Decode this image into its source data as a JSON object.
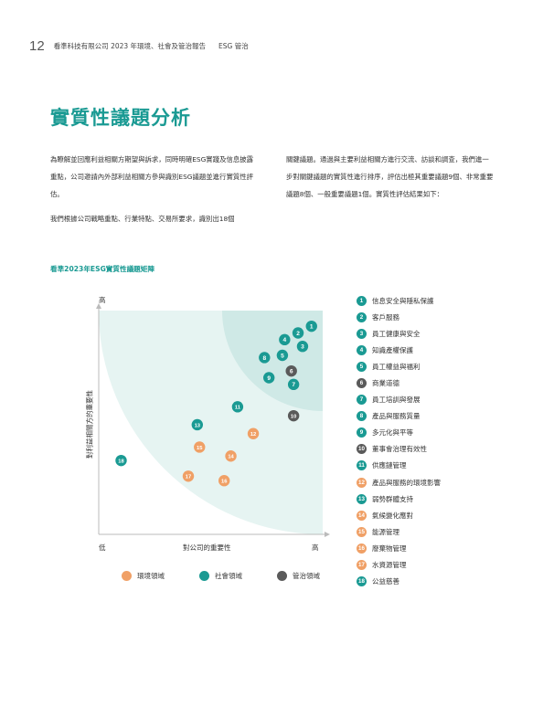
{
  "header": {
    "page_number": "12",
    "title": "看準科技有限公司 2023 年環境、社會及管治報告",
    "section": "ESG 管治"
  },
  "title": "實質性議題分析",
  "body": {
    "left": [
      "為瞭解並回應利益相關方期望與訴求，同時明確ESG實踐及信息披露重點，公司邀請內外部利益相關方參與識別ESG議題並進行實質性評估。",
      "我們根據公司戰略重點、行業特點、交易所要求，識別出18個"
    ],
    "right": [
      "關鍵議題。通過與主要利益相關方進行交流、訪談和調查，我們進一步對關鍵議題的實質性進行排序，評估出極其重要議題9個、非常重要議題8個、一般重要議題1個。實質性評估結果如下："
    ]
  },
  "matrix_heading": "看準2023年ESG實質性議題矩陣",
  "colors": {
    "env": "#f0a066",
    "social": "#1a9a93",
    "governance": "#5a5a5a",
    "zone_outer": "#e6f4f2",
    "zone_inner": "#cfe9e6"
  },
  "chart_data": {
    "type": "scatter",
    "xlabel": "對公司的重要性",
    "ylabel": "對利益相關方的重要性",
    "x_low": "低",
    "x_high": "高",
    "y_high": "高",
    "xlim": [
      0,
      100
    ],
    "ylim": [
      0,
      100
    ],
    "points": [
      {
        "id": 1,
        "x": 95,
        "y": 93,
        "cat": "social"
      },
      {
        "id": 2,
        "x": 89,
        "y": 90,
        "cat": "social"
      },
      {
        "id": 3,
        "x": 91,
        "y": 84,
        "cat": "social"
      },
      {
        "id": 4,
        "x": 83,
        "y": 87,
        "cat": "social"
      },
      {
        "id": 5,
        "x": 82,
        "y": 80,
        "cat": "social"
      },
      {
        "id": 6,
        "x": 86,
        "y": 73,
        "cat": "governance"
      },
      {
        "id": 7,
        "x": 87,
        "y": 67,
        "cat": "social"
      },
      {
        "id": 8,
        "x": 74,
        "y": 79,
        "cat": "social"
      },
      {
        "id": 9,
        "x": 76,
        "y": 70,
        "cat": "social"
      },
      {
        "id": 10,
        "x": 87,
        "y": 53,
        "cat": "governance"
      },
      {
        "id": 11,
        "x": 62,
        "y": 57,
        "cat": "social"
      },
      {
        "id": 12,
        "x": 69,
        "y": 45,
        "cat": "env"
      },
      {
        "id": 13,
        "x": 44,
        "y": 49,
        "cat": "social"
      },
      {
        "id": 14,
        "x": 59,
        "y": 35,
        "cat": "env"
      },
      {
        "id": 15,
        "x": 45,
        "y": 39,
        "cat": "env"
      },
      {
        "id": 16,
        "x": 56,
        "y": 24,
        "cat": "env"
      },
      {
        "id": 17,
        "x": 40,
        "y": 26,
        "cat": "env"
      },
      {
        "id": 18,
        "x": 10,
        "y": 33,
        "cat": "social"
      }
    ]
  },
  "legend": [
    {
      "cat": "env",
      "label": "環境領域"
    },
    {
      "cat": "social",
      "label": "社會領域"
    },
    {
      "cat": "governance",
      "label": "管治領域"
    }
  ],
  "issues": [
    {
      "id": "1",
      "label": "信息安全與隱私保護",
      "cat": "social"
    },
    {
      "id": "2",
      "label": "客戶服務",
      "cat": "social"
    },
    {
      "id": "3",
      "label": "員工健康與安全",
      "cat": "social"
    },
    {
      "id": "4",
      "label": "知識產權保護",
      "cat": "social"
    },
    {
      "id": "5",
      "label": "員工權益與福利",
      "cat": "social"
    },
    {
      "id": "6",
      "label": "商業道德",
      "cat": "governance"
    },
    {
      "id": "7",
      "label": "員工培訓與發展",
      "cat": "social"
    },
    {
      "id": "8",
      "label": "產品與服務質量",
      "cat": "social"
    },
    {
      "id": "9",
      "label": "多元化與平等",
      "cat": "social"
    },
    {
      "id": "10",
      "label": "董事會治理有效性",
      "cat": "governance"
    },
    {
      "id": "11",
      "label": "供應鏈管理",
      "cat": "social"
    },
    {
      "id": "12",
      "label": "產品與服務的環境影響",
      "cat": "env"
    },
    {
      "id": "13",
      "label": "弱勢群體支持",
      "cat": "social"
    },
    {
      "id": "14",
      "label": "氣候變化應對",
      "cat": "env"
    },
    {
      "id": "15",
      "label": "能源管理",
      "cat": "env"
    },
    {
      "id": "16",
      "label": "廢棄物管理",
      "cat": "env"
    },
    {
      "id": "17",
      "label": "水資源管理",
      "cat": "env"
    },
    {
      "id": "18",
      "label": "公益慈善",
      "cat": "social"
    }
  ]
}
